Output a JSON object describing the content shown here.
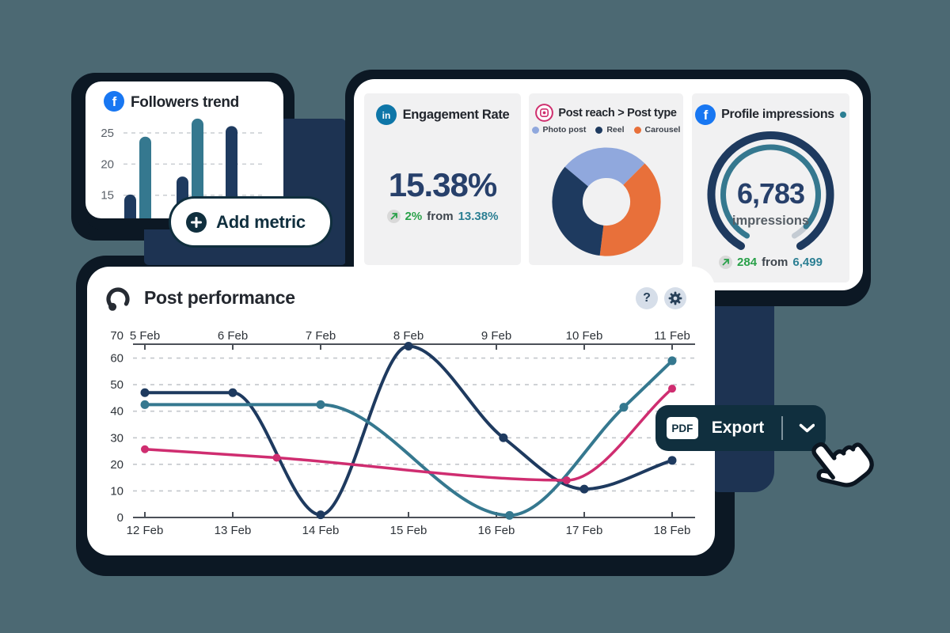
{
  "colors": {
    "background": "#4C6973",
    "shadow": "#0C1824",
    "navy_block": "#1D3352",
    "navy": "#1E3A5F",
    "teal": "#35788F",
    "pink": "#CF2D70",
    "orange": "#E8703A",
    "periwinkle": "#90A8DD",
    "green": "#2AA14A",
    "teal_text": "#2C7F93",
    "panel_bg": "#F1F1F2",
    "gauge_gray": "#C4CBD3",
    "brand_dark": "#102F3E",
    "facebook": "#1877F2",
    "linkedin": "#0E76A8",
    "instagram": "#CF2F6E"
  },
  "followers_card": {
    "title": "Followers trend",
    "chart": {
      "type": "bar",
      "yticks": [
        25,
        20,
        15
      ],
      "values": [
        15.1,
        24.4,
        18.0,
        27.3,
        26.1
      ],
      "bar_colors": [
        "navy",
        "teal",
        "navy",
        "teal",
        "navy"
      ]
    }
  },
  "add_metric": {
    "label": "Add metric"
  },
  "engagement_panel": {
    "title": "Engagement Rate",
    "value": "15.38%",
    "change": "2%",
    "from_label": "from",
    "previous": "13.38%"
  },
  "post_reach_panel": {
    "title": "Post reach > Post type",
    "legend": [
      {
        "label": "Photo post",
        "color": "periwinkle"
      },
      {
        "label": "Reel",
        "color": "navy"
      },
      {
        "label": "Carousel",
        "color": "orange"
      }
    ],
    "chart": {
      "type": "pie",
      "start_deg": 310,
      "hole_ratio": 0.44,
      "slices": [
        {
          "label": "Photo post",
          "deg": 95,
          "color": "periwinkle"
        },
        {
          "label": "Carousel",
          "deg": 142,
          "color": "orange"
        },
        {
          "label": "Reel",
          "deg": 123,
          "color": "navy"
        }
      ]
    }
  },
  "impressions_panel": {
    "title": "Profile impressions",
    "value": "6,783",
    "unit": "impressions",
    "change": "284",
    "from_label": "from",
    "previous": "6,499",
    "gauge": {
      "type": "gauge",
      "start_deg": 210,
      "end_deg": 150,
      "progress": 0.94
    }
  },
  "performance_card": {
    "title": "Post performance",
    "chart_data": {
      "type": "line",
      "x_top_labels": [
        "5 Feb",
        "6 Feb",
        "7 Feb",
        "8 Feb",
        "9 Feb",
        "10 Feb",
        "11 Feb"
      ],
      "x_bottom_labels": [
        "12 Feb",
        "13 Feb",
        "14 Feb",
        "15 Feb",
        "16 Feb",
        "17 Feb",
        "18 Feb"
      ],
      "ylim": [
        0,
        70
      ],
      "yticks": [
        0,
        10,
        20,
        30,
        40,
        50,
        60,
        70
      ],
      "series": [
        {
          "name": "dark-navy",
          "color": "navy",
          "width": 4,
          "marker_r": 5.5,
          "points": [
            [
              1,
              47,
              1
            ],
            [
              2,
              47,
              1
            ],
            [
              3,
              1,
              1
            ],
            [
              4,
              64.5,
              1
            ],
            [
              5.08,
              30,
              1
            ],
            [
              6,
              10.7,
              1
            ],
            [
              7,
              21.5,
              1
            ]
          ]
        },
        {
          "name": "teal",
          "color": "teal",
          "width": 4,
          "marker_r": 5.5,
          "points": [
            [
              1,
              42.5,
              1
            ],
            [
              2,
              42.5,
              0
            ],
            [
              3,
              42.5,
              1
            ],
            [
              5.15,
              0.8,
              1
            ],
            [
              6.45,
              41.5,
              1
            ],
            [
              7,
              59,
              1
            ]
          ]
        },
        {
          "name": "pink",
          "color": "pink",
          "width": 3.5,
          "marker_r": 5,
          "points": [
            [
              1,
              25.7,
              1
            ],
            [
              2.5,
              22.5,
              1
            ],
            [
              5.8,
              14,
              1
            ],
            [
              7,
              48.5,
              1
            ]
          ]
        }
      ]
    }
  },
  "export_button": {
    "badge": "PDF",
    "label": "Export"
  }
}
